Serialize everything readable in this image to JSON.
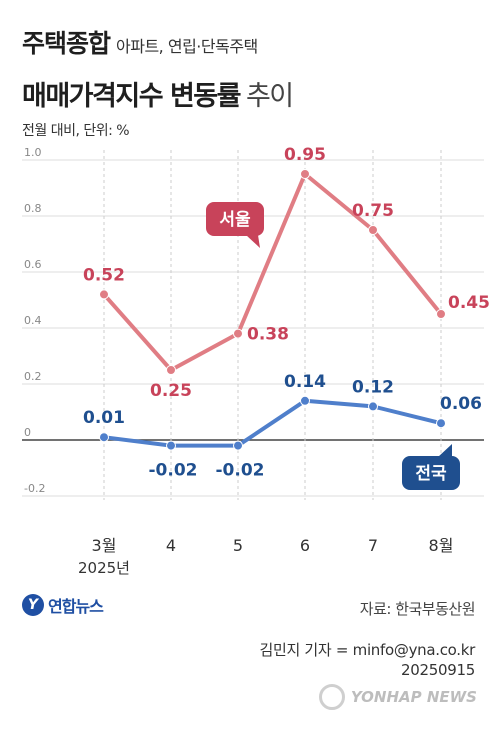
{
  "title": {
    "line1": "주택종합",
    "line1_sub": "아파트, 연립·단독주택",
    "line2": "매매가격지수 변동률",
    "line2_suffix": "추이"
  },
  "unit_label": "전월 대비, 단위: %",
  "source": "자료: 한국부동산원",
  "credit": {
    "reporter": "김민지 기자 = minfo@yna.co.kr",
    "date": "20250915"
  },
  "logo": {
    "mark": "Y",
    "text": "연합뉴스"
  },
  "watermark": "YONHAP NEWS",
  "chart_data": {
    "type": "line",
    "categories": [
      "3월",
      "4",
      "5",
      "6",
      "7",
      "8월"
    ],
    "category_sublabels": [
      "2025년",
      "",
      "",
      "",
      "",
      ""
    ],
    "series": [
      {
        "name": "서울",
        "values": [
          0.52,
          0.25,
          0.38,
          0.95,
          0.75,
          0.45
        ],
        "labels": [
          "0.52",
          "0.25",
          "0.38",
          "0.95",
          "0.75",
          "0.45"
        ],
        "color": "#e07d84",
        "label_color": "#c8435a"
      },
      {
        "name": "전국",
        "values": [
          0.01,
          -0.02,
          -0.02,
          0.14,
          0.12,
          0.06
        ],
        "labels": [
          "0.01",
          "-0.02",
          "-0.02",
          "0.14",
          "0.12",
          "0.06"
        ],
        "color": "#4f7fcb",
        "label_color": "#1f4f8f"
      }
    ],
    "yticks": [
      1.0,
      0.8,
      0.6,
      0.4,
      0.2,
      0,
      -0.2
    ],
    "ytick_labels": [
      "1.0",
      "0.8",
      "0.6",
      "0.4",
      "0.2",
      "0",
      "-0.2"
    ],
    "ylim": [
      -0.2,
      1.0
    ],
    "grid": true
  }
}
